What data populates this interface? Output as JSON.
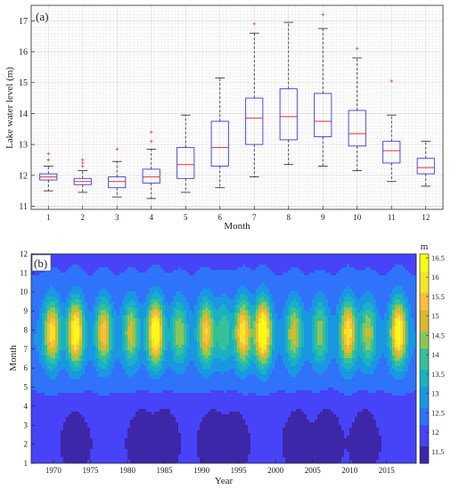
{
  "chart_data": [
    {
      "type": "box",
      "panel_label": "(a)",
      "xlabel": "Month",
      "ylabel": "Lake water level (m)",
      "categories": [
        "1",
        "2",
        "3",
        "4",
        "5",
        "6",
        "7",
        "8",
        "9",
        "10",
        "11",
        "12"
      ],
      "ylim": [
        10.9,
        17.5
      ],
      "yticks": [
        "11",
        "12",
        "13",
        "14",
        "15",
        "16",
        "17"
      ],
      "grid": "on",
      "boxes": [
        {
          "whisker_low": 11.5,
          "q1": 11.85,
          "median": 11.95,
          "q3": 12.05,
          "whisker_high": 12.3,
          "outliers": [
            12.5,
            12.7
          ]
        },
        {
          "whisker_low": 11.45,
          "q1": 11.7,
          "median": 11.8,
          "q3": 11.9,
          "whisker_high": 12.15,
          "outliers": [
            12.3,
            12.4,
            12.5
          ]
        },
        {
          "whisker_low": 11.3,
          "q1": 11.6,
          "median": 11.8,
          "q3": 11.95,
          "whisker_high": 12.45,
          "outliers": [
            12.85
          ]
        },
        {
          "whisker_low": 11.25,
          "q1": 11.75,
          "median": 11.95,
          "q3": 12.2,
          "whisker_high": 12.85,
          "outliers": [
            13.1,
            13.4
          ]
        },
        {
          "whisker_low": 11.45,
          "q1": 11.9,
          "median": 12.35,
          "q3": 12.9,
          "whisker_high": 13.95,
          "outliers": []
        },
        {
          "whisker_low": 11.6,
          "q1": 12.3,
          "median": 12.9,
          "q3": 13.75,
          "whisker_high": 15.15,
          "outliers": []
        },
        {
          "whisker_low": 11.95,
          "q1": 13.0,
          "median": 13.85,
          "q3": 14.5,
          "whisker_high": 16.6,
          "outliers": [
            16.9
          ]
        },
        {
          "whisker_low": 12.35,
          "q1": 13.15,
          "median": 13.9,
          "q3": 14.8,
          "whisker_high": 16.95,
          "outliers": []
        },
        {
          "whisker_low": 12.3,
          "q1": 13.25,
          "median": 13.75,
          "q3": 14.65,
          "whisker_high": 16.75,
          "outliers": [
            17.2
          ]
        },
        {
          "whisker_low": 12.15,
          "q1": 12.95,
          "median": 13.35,
          "q3": 14.1,
          "whisker_high": 15.8,
          "outliers": [
            16.1
          ]
        },
        {
          "whisker_low": 11.8,
          "q1": 12.4,
          "median": 12.8,
          "q3": 13.1,
          "whisker_high": 13.95,
          "outliers": [
            15.05
          ]
        },
        {
          "whisker_low": 11.65,
          "q1": 12.05,
          "median": 12.25,
          "q3": 12.55,
          "whisker_high": 13.1,
          "outliers": []
        }
      ]
    },
    {
      "type": "heatmap",
      "panel_label": "(b)",
      "xlabel": "Year",
      "ylabel": "Month",
      "colorbar_label": "m",
      "xlim": [
        1967,
        2019
      ],
      "ylim": [
        1,
        12
      ],
      "xticks": [
        "1970",
        "1975",
        "1980",
        "1985",
        "1990",
        "1995",
        "2000",
        "2005",
        "2010",
        "2015"
      ],
      "yticks": [
        "1",
        "2",
        "3",
        "4",
        "5",
        "6",
        "7",
        "8",
        "9",
        "10",
        "11",
        "12"
      ],
      "colorbar_ticks": [
        "11.5",
        "12",
        "12.5",
        "13",
        "13.5",
        "14",
        "14.5",
        "15",
        "15.5",
        "16",
        "16.5"
      ],
      "colorbar_range": [
        11.2,
        16.6
      ],
      "colormap": [
        "#3e26a8",
        "#4743f8",
        "#2f73fb",
        "#1a97e2",
        "#1ab1c3",
        "#36c096",
        "#8ac657",
        "#d7ba2d",
        "#fcbe3c",
        "#f5e52a",
        "#f9fb15"
      ],
      "base_level": 12.1,
      "summer_peaks": [
        {
          "year": 1969.8,
          "peak": 15.4
        },
        {
          "year": 1973.0,
          "peak": 16.1
        },
        {
          "year": 1976.8,
          "peak": 15.0
        },
        {
          "year": 1980.5,
          "peak": 14.4
        },
        {
          "year": 1983.8,
          "peak": 16.3
        },
        {
          "year": 1987.0,
          "peak": 14.1
        },
        {
          "year": 1990.6,
          "peak": 15.1
        },
        {
          "year": 1993.0,
          "peak": 13.6
        },
        {
          "year": 1995.6,
          "peak": 15.6
        },
        {
          "year": 1998.3,
          "peak": 16.6
        },
        {
          "year": 2002.5,
          "peak": 14.4
        },
        {
          "year": 2006.0,
          "peak": 14.0
        },
        {
          "year": 2009.8,
          "peak": 15.5
        },
        {
          "year": 2012.5,
          "peak": 14.2
        },
        {
          "year": 2016.6,
          "peak": 16.1
        }
      ],
      "winter_lows": [
        {
          "year": 1973.0,
          "depth": 0.7
        },
        {
          "year": 1982.0,
          "depth": 0.8
        },
        {
          "year": 1985.0,
          "depth": 0.9
        },
        {
          "year": 1991.5,
          "depth": 0.8
        },
        {
          "year": 1994.5,
          "depth": 0.7
        },
        {
          "year": 2003.0,
          "depth": 0.8
        },
        {
          "year": 2007.0,
          "depth": 0.9
        },
        {
          "year": 2012.0,
          "depth": 0.8
        }
      ]
    }
  ]
}
